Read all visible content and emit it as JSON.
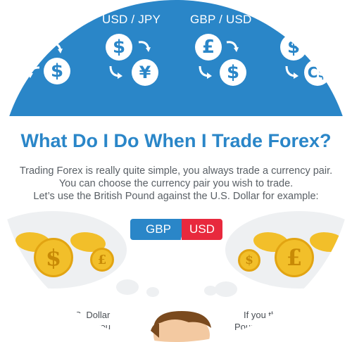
{
  "pairs": [
    {
      "label": "USD / JPY"
    },
    {
      "label": "GBP / USD"
    }
  ],
  "coins": {
    "dollar": "$",
    "yen": "¥",
    "pound": "£",
    "partial_right": "C$"
  },
  "heading": "What Do I Do When I Trade Forex?",
  "intro": {
    "line1": "Trading Forex is really quite simple, you always trade a currency pair.",
    "line2": "You can choose the currency pair you wish to trade.",
    "line3": "Let’s use the British Pound against the U.S. Dollar for example:"
  },
  "pill": {
    "base": "GBP",
    "quote": "USD"
  },
  "snippets": {
    "left_line1": "l S. Dollar",
    "left_line2": "you",
    "right_line1": "If you th",
    "right_line2": "Poun"
  },
  "colors": {
    "brand_blue": "#2a86c8",
    "brand_red": "#e8293d",
    "gold": "#f2bf2a"
  }
}
